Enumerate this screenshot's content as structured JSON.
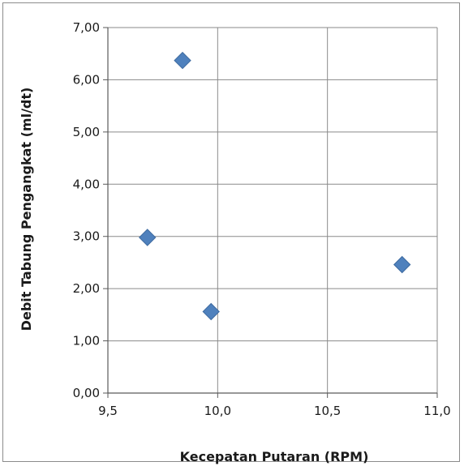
{
  "chart_data": {
    "type": "scatter",
    "title": "",
    "xlabel": "Kecepatan Putaran (RPM)",
    "ylabel": "Debit Tabung Pengangkat (ml/dt)",
    "xlim": [
      9.5,
      11.0
    ],
    "ylim": [
      0,
      7
    ],
    "x_ticks": [
      9.5,
      10.0,
      10.5,
      11.0
    ],
    "x_tick_labels": [
      "9,5",
      "10,0",
      "10,5",
      "11,0"
    ],
    "y_ticks": [
      0,
      1,
      2,
      3,
      4,
      5,
      6,
      7
    ],
    "y_tick_labels": [
      "0,00",
      "1,00",
      "2,00",
      "3,00",
      "4,00",
      "5,00",
      "6,00",
      "7,00"
    ],
    "grid": true,
    "marker": "diamond",
    "marker_color": "#4f81bd",
    "points": [
      {
        "x": 9.68,
        "y": 2.98
      },
      {
        "x": 9.84,
        "y": 6.37
      },
      {
        "x": 9.97,
        "y": 1.56
      },
      {
        "x": 10.84,
        "y": 2.46
      }
    ]
  }
}
